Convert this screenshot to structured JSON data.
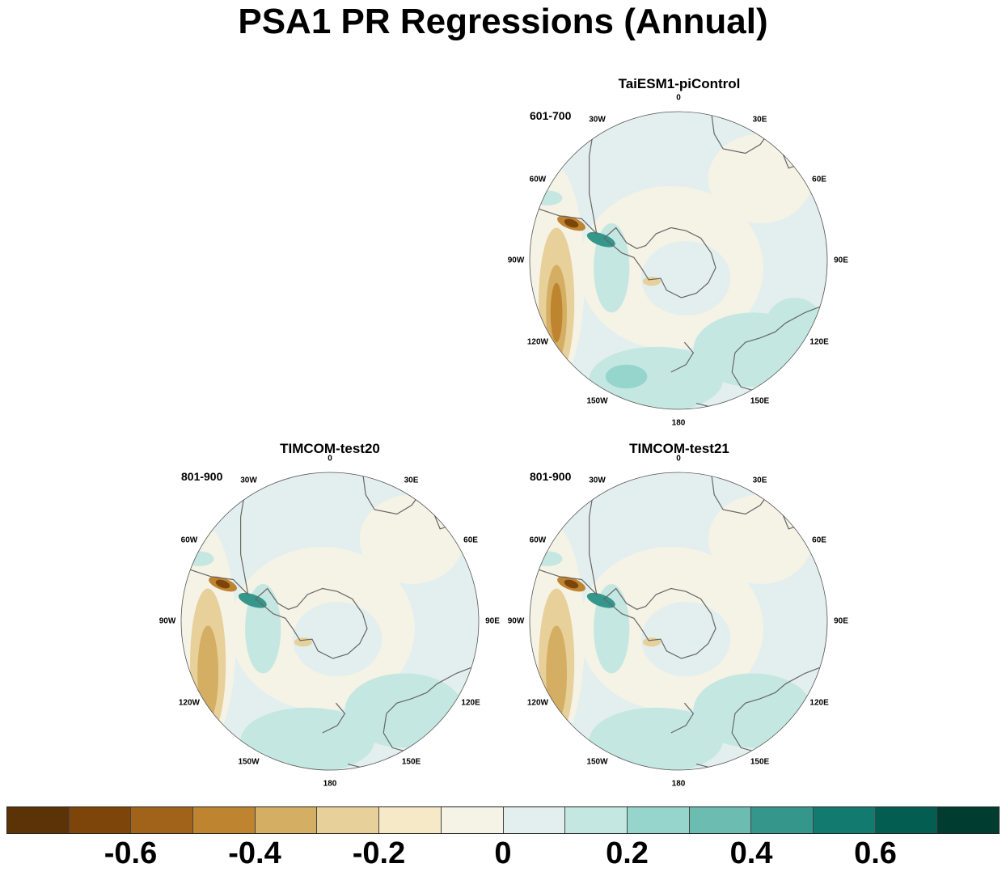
{
  "title": "PSA1 PR Regressions (Annual)",
  "panels": [
    {
      "name": "TaiESM1-piControl",
      "period": "601-700"
    },
    {
      "name": "TIMCOM-test20",
      "period": "801-900"
    },
    {
      "name": "TIMCOM-test21",
      "period": "801-900"
    }
  ],
  "longitude_labels": [
    "0",
    "30E",
    "60E",
    "90E",
    "120E",
    "150E",
    "180",
    "150W",
    "120W",
    "90W",
    "60W",
    "30W"
  ],
  "colorbar": {
    "colors": [
      "#5c3306",
      "#7d4509",
      "#a1621a",
      "#bf8430",
      "#d4ae62",
      "#e8d09a",
      "#f5e9c8",
      "#f5f2e6",
      "#e3efee",
      "#c4e7e2",
      "#95d5cb",
      "#6cbcb2",
      "#35968b",
      "#127a6e",
      "#035d50",
      "#003d30"
    ],
    "tick_labels": [
      "-0.6",
      "-0.4",
      "-0.2",
      "0",
      "0.2",
      "0.4",
      "0.6"
    ]
  }
}
